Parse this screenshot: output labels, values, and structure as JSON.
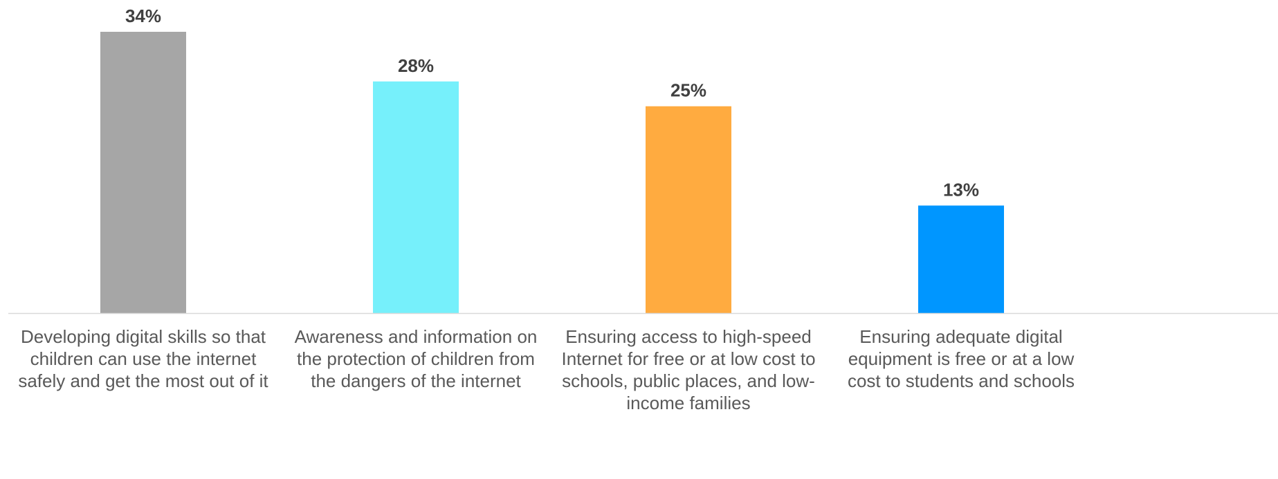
{
  "chart_data": {
    "type": "bar",
    "categories": [
      "Developing digital skills so that children can use the internet safely and get the most out of it",
      "Awareness and information on the protection of children from the dangers of the internet",
      "Ensuring access to high-speed Internet for free or at low cost to schools, public places, and low-income families",
      "Ensuring adequate digital equipment is free or at a low cost to students and schools"
    ],
    "category_lines": [
      [
        "Developing digital skills so that",
        "children can use the internet",
        "safely and get the most out of it"
      ],
      [
        "Awareness and information on",
        "the protection of children from",
        "the dangers of the internet"
      ],
      [
        "Ensuring access to high-speed",
        "Internet for free or at low cost to",
        "schools, public places, and low-",
        "income families"
      ],
      [
        "Ensuring adequate digital",
        "equipment is free or at a low",
        "cost to students and schools"
      ]
    ],
    "values": [
      34,
      28,
      25,
      13
    ],
    "value_labels": [
      "34%",
      "28%",
      "25%",
      "13%"
    ],
    "colors": [
      "#a6a6a6",
      "#76f0fb",
      "#ffab40",
      "#0096ff"
    ],
    "axis_color": "#d9d9d9",
    "title": "",
    "xlabel": "",
    "ylabel": "",
    "ylim": [
      0,
      34
    ],
    "grid": false,
    "legend": "none"
  }
}
